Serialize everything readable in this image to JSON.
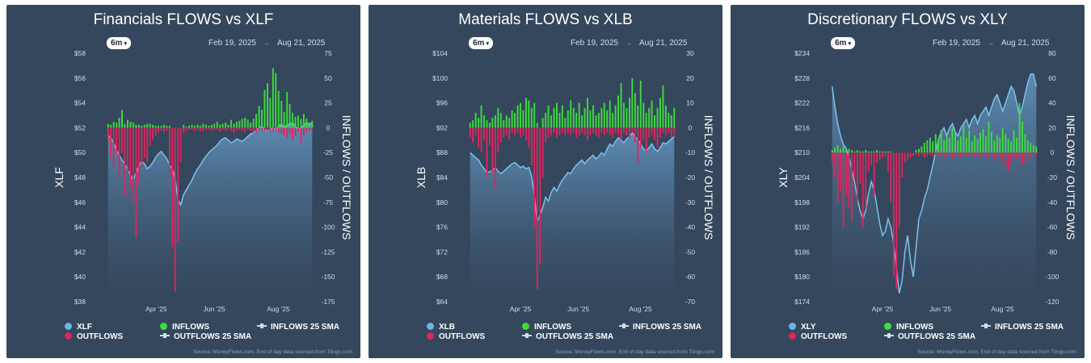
{
  "panels": [
    {
      "title": "Financials FLOWS vs XLF",
      "range_button": "6m",
      "date_start": "Feb 19, 2025",
      "date_end": "Aug 21, 2025",
      "source": "Source: MoneyFlows.com. End of day data sourced from Tiingo.com",
      "legend": [
        {
          "label": "XLF",
          "color": "#6fb1e6",
          "kind": "dot"
        },
        {
          "label": "INFLOWS",
          "color": "#3ddc3d",
          "kind": "dot"
        },
        {
          "label": "INFLOWS 25 SMA",
          "color": "#d5dde6",
          "kind": "line"
        },
        {
          "label": "OUTFLOWS",
          "color": "#e0245e",
          "kind": "dot"
        },
        {
          "label": "OUTFLOWS 25 SMA",
          "color": "#d5dde6",
          "kind": "line"
        }
      ]
    },
    {
      "title": "Materials FLOWS vs XLB",
      "range_button": "6m",
      "date_start": "Feb 19, 2025",
      "date_end": "Aug 21, 2025",
      "source": "Source: MoneyFlows.com. End of day data sourced from Tiingo.com",
      "legend": [
        {
          "label": "XLB",
          "color": "#6fb1e6",
          "kind": "dot"
        },
        {
          "label": "INFLOWS",
          "color": "#3ddc3d",
          "kind": "dot"
        },
        {
          "label": "INFLOWS 25 SMA",
          "color": "#d5dde6",
          "kind": "line"
        },
        {
          "label": "OUTFLOWS",
          "color": "#e0245e",
          "kind": "dot"
        },
        {
          "label": "OUTFLOWS 25 SMA",
          "color": "#d5dde6",
          "kind": "line"
        }
      ]
    },
    {
      "title": "Discretionary FLOWS vs XLY",
      "range_button": "6m",
      "date_start": "Feb 19, 2025",
      "date_end": "Aug 21, 2025",
      "source": "Source: MoneyFlows.com. End of day data sourced from Tiingo.com",
      "legend": [
        {
          "label": "XLY",
          "color": "#6fb1e6",
          "kind": "dot"
        },
        {
          "label": "INFLOWS",
          "color": "#3ddc3d",
          "kind": "dot"
        },
        {
          "label": "INFLOWS 25 SMA",
          "color": "#d5dde6",
          "kind": "line"
        },
        {
          "label": "OUTFLOWS",
          "color": "#e0245e",
          "kind": "dot"
        },
        {
          "label": "OUTFLOWS 25 SMA",
          "color": "#d5dde6",
          "kind": "line"
        }
      ]
    }
  ],
  "chart_data": [
    {
      "type": "area",
      "title": "Financials FLOWS vs XLF",
      "ylabel": "XLF",
      "y2label": "INFLOWS / OUTFLOWS",
      "x_tick_labels": [
        "Apr '25",
        "Jun '25",
        "Aug '25"
      ],
      "x_tick_positions": [
        0.24,
        0.52,
        0.83
      ],
      "ylim": [
        38,
        58
      ],
      "y_ticks": [
        "$58",
        "$56",
        "$54",
        "$52",
        "$50",
        "$48",
        "$46",
        "$44",
        "$42",
        "$40",
        "$38"
      ],
      "y2lim": [
        -175,
        75
      ],
      "y2_ticks": [
        "75",
        "50",
        "25",
        "0",
        "-25",
        "-50",
        "-75",
        "-100",
        "-125",
        "-150",
        "-175"
      ],
      "price_series": {
        "name": "XLF",
        "values": [
          51.4,
          51.2,
          50.8,
          50.2,
          49.8,
          49.4,
          49.1,
          48.6,
          48.2,
          47.8,
          48.4,
          48.9,
          49.3,
          49.1,
          48.7,
          48.9,
          49.2,
          49.6,
          49.9,
          50.1,
          49.8,
          49.5,
          49.0,
          48.7,
          47.9,
          46.2,
          45.8,
          46.6,
          47.0,
          47.4,
          47.8,
          48.3,
          48.7,
          49.0,
          49.4,
          49.7,
          50.0,
          50.2,
          50.4,
          50.6,
          50.9,
          51.1,
          51.2,
          51.0,
          50.8,
          50.9,
          51.1,
          51.0,
          50.9,
          51.1,
          51.3,
          51.5,
          51.6,
          51.8,
          52.0,
          52.1,
          51.9,
          51.7,
          51.9,
          52.0,
          51.8,
          52.1,
          52.3,
          52.0,
          52.2,
          52.3,
          52.4,
          52.1,
          51.9,
          52.0,
          52.2,
          52.4,
          52.3,
          52.4
        ]
      },
      "inflows": [
        4,
        3,
        6,
        5,
        10,
        18,
        4,
        8,
        6,
        5,
        3,
        3,
        2,
        3,
        4,
        4,
        3,
        2,
        2,
        2,
        3,
        2,
        2,
        0,
        0,
        0,
        0,
        3,
        1,
        2,
        3,
        2,
        3,
        2,
        4,
        3,
        2,
        3,
        4,
        6,
        3,
        4,
        5,
        3,
        8,
        4,
        6,
        7,
        9,
        10,
        8,
        5,
        9,
        14,
        22,
        18,
        38,
        45,
        30,
        60,
        55,
        37,
        27,
        16,
        36,
        24,
        15,
        11,
        12,
        9,
        14,
        9,
        5,
        7
      ],
      "outflows": [
        -12,
        -30,
        -38,
        -25,
        -50,
        -25,
        -70,
        -45,
        -60,
        -75,
        -110,
        -55,
        -40,
        -30,
        -35,
        -18,
        -12,
        -8,
        -5,
        -3,
        -4,
        -3,
        -50,
        -120,
        -165,
        -115,
        -35,
        -5,
        -3,
        -2,
        -2,
        -3,
        -2,
        -4,
        -3,
        -2,
        -2,
        -3,
        -2,
        -2,
        -4,
        -2,
        -3,
        -2,
        -3,
        -5,
        -3,
        -2,
        -3,
        -4,
        -2,
        -3,
        -5,
        -4,
        -3,
        -2,
        -3,
        -4,
        -3,
        -4,
        -3,
        -5,
        -6,
        -8,
        -10,
        -6,
        -12,
        -8,
        -4,
        -15,
        -8,
        -4,
        -3,
        -2
      ]
    },
    {
      "type": "area",
      "title": "Materials FLOWS vs XLB",
      "ylabel": "XLB",
      "y2label": "INFLOWS / OUTFLOWS",
      "x_tick_labels": [
        "Apr '25",
        "Jun '25",
        "Aug '25"
      ],
      "x_tick_positions": [
        0.25,
        0.53,
        0.83
      ],
      "ylim": [
        64,
        104
      ],
      "y_ticks": [
        "$104",
        "$100",
        "$96",
        "$92",
        "$88",
        "$84",
        "$80",
        "$76",
        "$72",
        "$68",
        "$64"
      ],
      "y2lim": [
        -70,
        30
      ],
      "y2_ticks": [
        "30",
        "20",
        "10",
        "0",
        "-10",
        "-20",
        "-30",
        "-40",
        "-50",
        "-60",
        "-70"
      ],
      "price_series": {
        "name": "XLB",
        "values": [
          88.0,
          87.6,
          87.2,
          86.8,
          86.0,
          85.4,
          84.8,
          84.9,
          85.2,
          85.6,
          85.0,
          84.6,
          85.0,
          85.4,
          85.8,
          86.2,
          86.4,
          86.0,
          85.6,
          85.8,
          85.4,
          85.6,
          84.2,
          81.0,
          76.8,
          78.0,
          79.2,
          80.8,
          80.2,
          81.6,
          82.4,
          81.8,
          82.8,
          83.6,
          84.2,
          84.8,
          84.6,
          85.4,
          86.0,
          86.4,
          86.8,
          86.2,
          86.8,
          87.2,
          87.6,
          87.0,
          87.4,
          88.0,
          87.6,
          88.6,
          89.4,
          89.0,
          89.8,
          90.4,
          90.0,
          89.6,
          90.2,
          90.6,
          91.2,
          90.6,
          90.0,
          89.4,
          88.6,
          88.2,
          88.8,
          89.4,
          88.6,
          88.2,
          88.8,
          89.6,
          89.4,
          89.8,
          90.2,
          90.6
        ]
      },
      "inflows": [
        2,
        3,
        6,
        4,
        9,
        5,
        3,
        2,
        4,
        5,
        8,
        6,
        3,
        5,
        4,
        7,
        6,
        9,
        10,
        7,
        12,
        11,
        8,
        10,
        2,
        0,
        4,
        6,
        9,
        5,
        8,
        10,
        6,
        9,
        4,
        7,
        11,
        8,
        6,
        10,
        5,
        8,
        12,
        7,
        9,
        5,
        6,
        8,
        10,
        7,
        11,
        6,
        9,
        13,
        18,
        10,
        8,
        12,
        20,
        14,
        9,
        19,
        10,
        6,
        8,
        11,
        5,
        8,
        12,
        17,
        9,
        6,
        5,
        8
      ],
      "outflows": [
        -4,
        -6,
        -3,
        -8,
        -10,
        -5,
        -20,
        -7,
        -18,
        -25,
        -10,
        -6,
        -4,
        -3,
        -5,
        -2,
        -3,
        -2,
        -4,
        -3,
        -5,
        -8,
        -15,
        -40,
        -65,
        -55,
        -20,
        -6,
        -4,
        -3,
        -2,
        -4,
        -3,
        -2,
        -3,
        -2,
        -3,
        -2,
        -4,
        -3,
        -2,
        -3,
        -5,
        -3,
        -2,
        -3,
        -4,
        -2,
        -3,
        -2,
        -3,
        -4,
        -2,
        -3,
        -5,
        -2,
        -3,
        -4,
        -2,
        -6,
        -14,
        -8,
        -5,
        -10,
        -4,
        -3,
        -5,
        -8,
        -4,
        -2,
        -3,
        -2,
        -4,
        -3
      ]
    },
    {
      "type": "area",
      "title": "Discretionary FLOWS vs XLY",
      "ylabel": "XLY",
      "y2label": "INFLOWS / OUTFLOWS",
      "x_tick_labels": [
        "Apr '25",
        "Jun '25",
        "Aug '25"
      ],
      "x_tick_positions": [
        0.25,
        0.53,
        0.83
      ],
      "ylim": [
        174,
        234
      ],
      "y_ticks": [
        "$234",
        "$228",
        "$222",
        "$216",
        "$210",
        "$204",
        "$198",
        "$192",
        "$186",
        "$180",
        "$174"
      ],
      "y2lim": [
        -120,
        80
      ],
      "y2_ticks": [
        "80",
        "60",
        "40",
        "20",
        "0",
        "-20",
        "-40",
        "-60",
        "-80",
        "-100",
        "-120"
      ],
      "price_series": {
        "name": "XLY",
        "values": [
          226.0,
          221.0,
          217.0,
          214.0,
          212.0,
          211.0,
          209.0,
          206.0,
          203.0,
          199.0,
          196.0,
          194.0,
          196.0,
          200.0,
          203.0,
          201.0,
          197.0,
          193.0,
          190.0,
          191.0,
          194.0,
          192.0,
          188.0,
          182.0,
          176.0,
          179.0,
          186.0,
          190.0,
          184.0,
          180.0,
          187.0,
          194.0,
          196.0,
          199.0,
          201.0,
          204.0,
          207.0,
          210.0,
          213.0,
          215.0,
          216.0,
          214.0,
          216.0,
          217.0,
          215.0,
          214.0,
          216.0,
          217.0,
          218.0,
          216.0,
          218.0,
          219.0,
          217.0,
          219.0,
          220.0,
          221.0,
          219.0,
          221.0,
          223.0,
          224.0,
          222.0,
          220.0,
          222.0,
          224.0,
          226.0,
          225.0,
          222.0,
          219.0,
          221.0,
          224.0,
          227.0,
          229.0,
          229.0,
          226.0
        ]
      },
      "inflows": [
        2,
        4,
        6,
        3,
        5,
        2,
        3,
        2,
        1,
        2,
        1,
        1,
        2,
        1,
        1,
        1,
        2,
        1,
        1,
        1,
        1,
        1,
        0,
        0,
        0,
        0,
        0,
        0,
        0,
        0,
        2,
        3,
        5,
        8,
        10,
        12,
        9,
        15,
        11,
        18,
        10,
        14,
        12,
        20,
        16,
        10,
        13,
        22,
        12,
        18,
        9,
        14,
        11,
        16,
        19,
        13,
        25,
        17,
        10,
        14,
        12,
        20,
        15,
        11,
        9,
        18,
        12,
        40,
        25,
        15,
        10,
        8,
        6,
        5
      ],
      "outflows": [
        -8,
        -20,
        -40,
        -30,
        -60,
        -35,
        -45,
        -55,
        -20,
        -40,
        -25,
        -60,
        -45,
        -15,
        -10,
        -35,
        -8,
        -6,
        -4,
        -3,
        -15,
        -40,
        -100,
        -110,
        -60,
        -20,
        -8,
        -6,
        -4,
        -3,
        -2,
        -3,
        -2,
        -4,
        -3,
        -2,
        -3,
        -2,
        -3,
        -2,
        -4,
        -3,
        -2,
        -5,
        -3,
        -2,
        -4,
        -3,
        -2,
        -3,
        -2,
        -3,
        -4,
        -2,
        -3,
        -5,
        -2,
        -3,
        -6,
        -4,
        -3,
        -8,
        -12,
        -15,
        -10,
        -6,
        -4,
        -5,
        -10,
        -8,
        -4,
        -2,
        -3,
        -2
      ]
    }
  ]
}
